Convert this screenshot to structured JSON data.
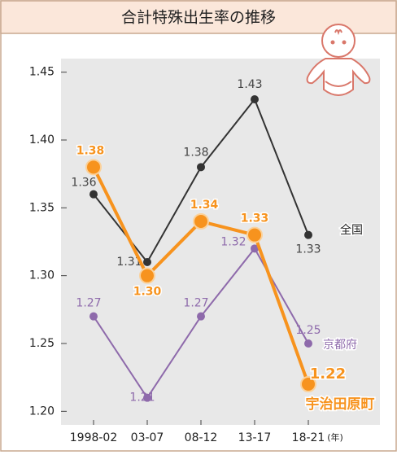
{
  "chart_data": {
    "type": "line",
    "title": "合計特殊出生率の推移",
    "categories": [
      "1998-02",
      "03-07",
      "08-12",
      "13-17",
      "18-21"
    ],
    "x_unit": "(年)",
    "ylim": [
      1.19,
      1.46
    ],
    "yticks": [
      {
        "value": 1.2,
        "label": "1.20"
      },
      {
        "value": 1.25,
        "label": "1.25"
      },
      {
        "value": 1.3,
        "label": "1.30"
      },
      {
        "value": 1.35,
        "label": "1.35"
      },
      {
        "value": 1.4,
        "label": "1.40"
      },
      {
        "value": 1.45,
        "label": "1.45"
      }
    ],
    "grid": false,
    "series": [
      {
        "name": "全国",
        "color": "#333333",
        "values": [
          1.36,
          1.31,
          1.38,
          1.43,
          1.33
        ],
        "value_labels": [
          "1.36",
          "1.31",
          "1.38",
          "1.43",
          "1.33"
        ]
      },
      {
        "name": "京都府",
        "color": "#8e6aab",
        "values": [
          1.27,
          1.21,
          1.27,
          1.32,
          1.25
        ],
        "value_labels": [
          "1.27",
          "1.21",
          "1.27",
          "1.32",
          "1.25"
        ]
      },
      {
        "name": "宇治田原町",
        "color": "#f7931e",
        "values": [
          1.38,
          1.3,
          1.34,
          1.33,
          1.22
        ],
        "value_labels": [
          "1.38",
          "1.30",
          "1.34",
          "1.33",
          "1.22"
        ]
      }
    ]
  }
}
